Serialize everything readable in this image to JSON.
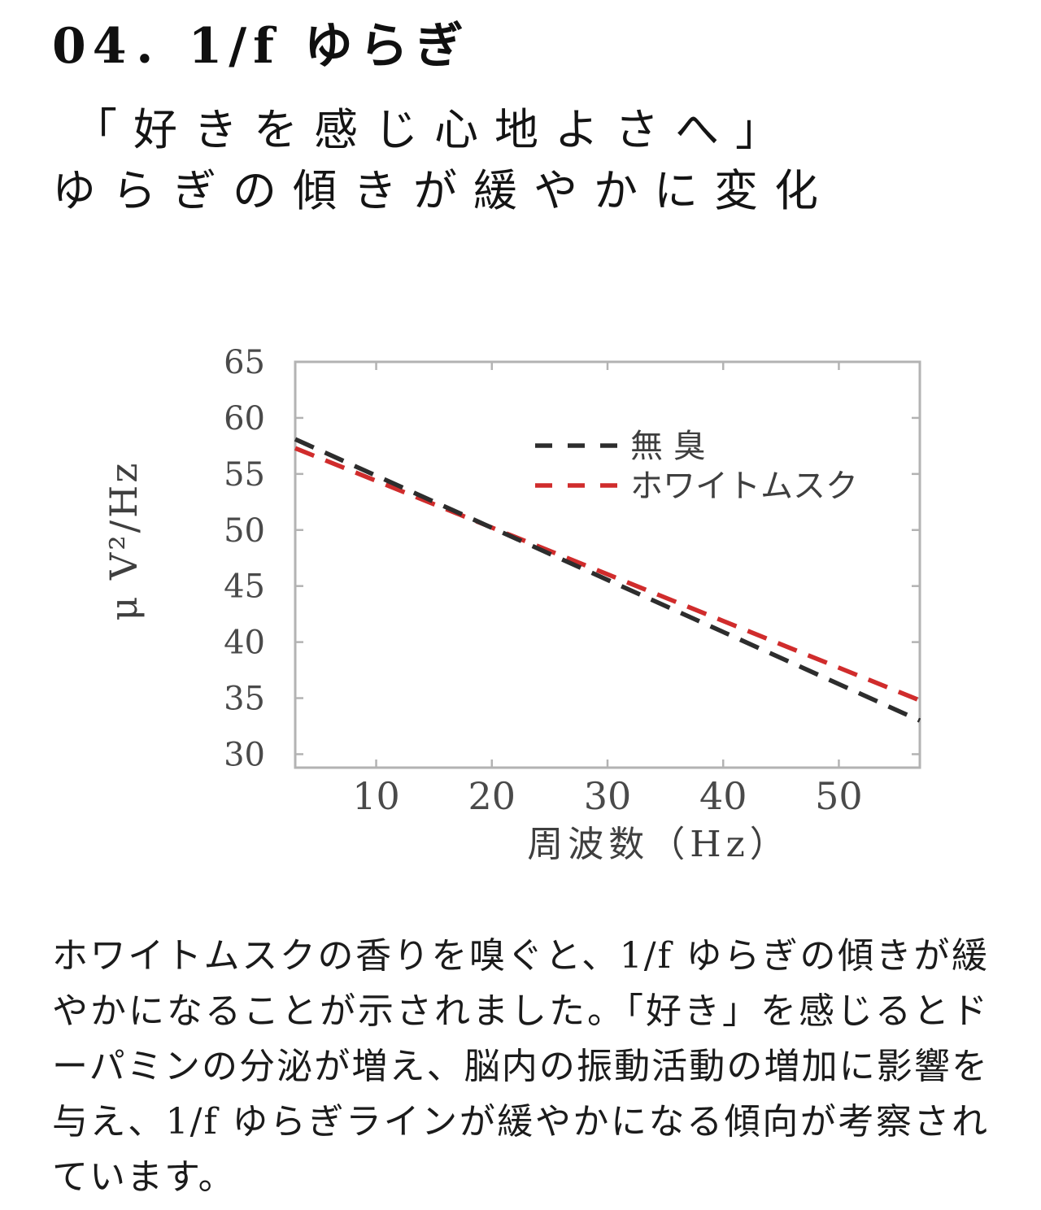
{
  "page": {
    "title": "04．1/f ゆらぎ",
    "subtitle_line1": "「好きを感じ心地よさへ」",
    "subtitle_line2": "ゆらぎの傾きが緩やかに変化",
    "body_lines": [
      "ホワイトムスクの香りを嗅ぐと、1/f ゆらぎの傾きが緩",
      "やかになることが示されました。「好き」を感じるとド",
      "ーパミンの分泌が増え、脳内の振動活動の増加に影響を",
      "与え、1/f ゆらぎラインが緩やかになる傾向が考察され",
      "ています。"
    ]
  },
  "chart_data": {
    "type": "line",
    "title": "",
    "xlabel": "周波数（Hz）",
    "ylabel": "μ V²/Hz",
    "xlim": [
      3,
      57
    ],
    "ylim": [
      28.8,
      65
    ],
    "xticks": [
      10,
      20,
      30,
      40,
      50
    ],
    "yticks": [
      30,
      35,
      40,
      45,
      50,
      55,
      60,
      65
    ],
    "grid": false,
    "line_style": "dashed",
    "legend_position": "inside upper right",
    "series": [
      {
        "name": "無 臭",
        "color": "#2d2d2d",
        "x": [
          3,
          57
        ],
        "y": [
          58.1,
          33.0
        ]
      },
      {
        "name": "ホワイトムスク",
        "color": "#d02c2c",
        "x": [
          3,
          57
        ],
        "y": [
          57.3,
          34.8
        ]
      }
    ]
  },
  "colors": {
    "axis": "#b3b3b3",
    "tick_text": "#4a4a4a",
    "label_text": "#3f3f3f",
    "series_black": "#2d2d2d",
    "series_red": "#d02c2c"
  }
}
